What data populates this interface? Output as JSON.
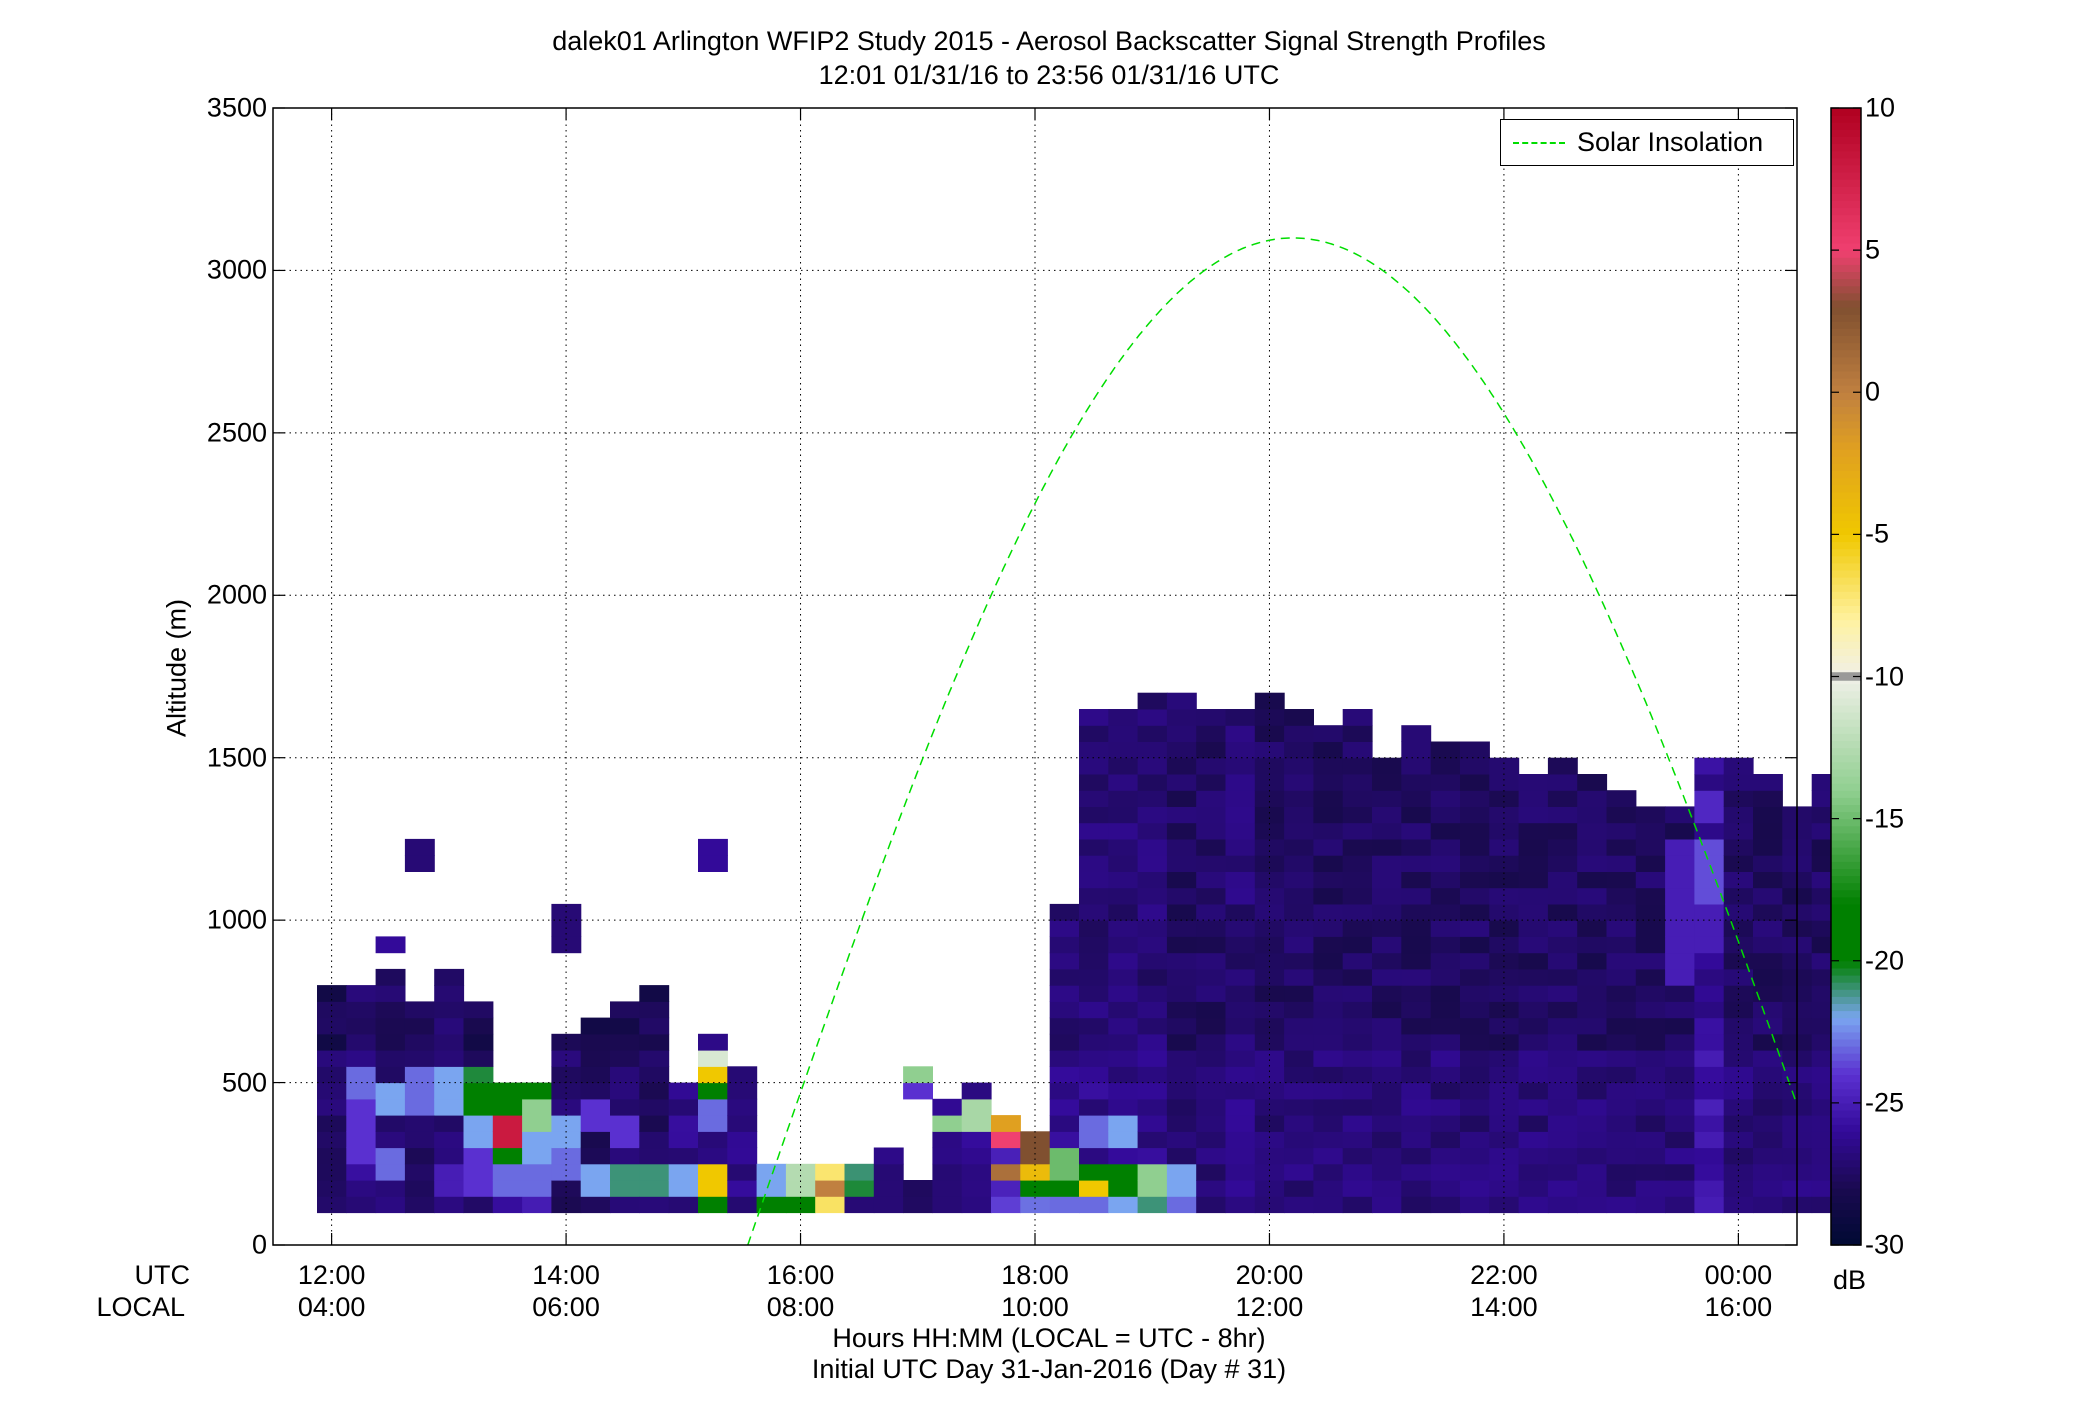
{
  "title": {
    "line1": "dalek01 Arlington WFIP2 Study 2015 - Aerosol Backscatter Signal Strength Profiles",
    "line2": "12:01 01/31/16 to 23:56 01/31/16  UTC"
  },
  "axis_labels": {
    "ylabel": "Altitude (m)",
    "xlabel_line1": "Hours HH:MM  (LOCAL = UTC - 8hr)",
    "xlabel_line2": "Initial UTC Day 31-Jan-2016 (Day # 31)",
    "row_utc": "UTC",
    "row_local": "LOCAL"
  },
  "legend": {
    "label": "Solar Insolation",
    "color": "#00dd00",
    "placement": "top-right"
  },
  "colorbar": {
    "unit": "dB",
    "ticks": [
      "10",
      "5",
      "0",
      "-5",
      "-10",
      "-15",
      "-20",
      "-25",
      "-30"
    ]
  },
  "chart_data": {
    "type": "heatmap",
    "grid": true,
    "x_range_hours": [
      11.5,
      24.5
    ],
    "y_range_m": [
      0,
      3500
    ],
    "xticks_utc": [
      "12:00",
      "14:00",
      "16:00",
      "18:00",
      "20:00",
      "22:00",
      "00:00"
    ],
    "xticks_local": [
      "04:00",
      "06:00",
      "08:00",
      "10:00",
      "12:00",
      "14:00",
      "16:00"
    ],
    "yticks": [
      "0",
      "500",
      "1000",
      "1500",
      "2000",
      "2500",
      "3000",
      "3500"
    ],
    "color_range_db": [
      -30,
      10
    ],
    "colormap": [
      {
        "db": -30,
        "color": "#000a33"
      },
      {
        "db": -28,
        "color": "#1a0a50"
      },
      {
        "db": -26,
        "color": "#330a99"
      },
      {
        "db": -24,
        "color": "#5a30d0"
      },
      {
        "db": -22,
        "color": "#7aa5f0"
      },
      {
        "db": -20,
        "color": "#008000"
      },
      {
        "db": -18,
        "color": "#008000"
      },
      {
        "db": -14,
        "color": "#90cf90"
      },
      {
        "db": -10,
        "color": "#f0f0e8"
      },
      {
        "db": -8,
        "color": "#fff2a0"
      },
      {
        "db": -5,
        "color": "#f0c800"
      },
      {
        "db": -2,
        "color": "#e0a020"
      },
      {
        "db": 0,
        "color": "#c08040"
      },
      {
        "db": 3,
        "color": "#805030"
      },
      {
        "db": 5,
        "color": "#f04070"
      },
      {
        "db": 10,
        "color": "#b00020"
      }
    ],
    "bin_width_hours": 0.25,
    "bin_height_m": 50,
    "columns": [
      {
        "t": 12.0,
        "top": 800,
        "low": -28
      },
      {
        "t": 12.25,
        "top": 800,
        "low": -27,
        "spots": [
          [
            450,
            550,
            -23
          ],
          [
            250,
            450,
            -24
          ]
        ]
      },
      {
        "t": 12.5,
        "top": 850,
        "low": -27.5,
        "extra": [
          [
            900,
            950,
            -26
          ]
        ],
        "spots": [
          [
            400,
            500,
            -22
          ],
          [
            200,
            300,
            -23
          ]
        ]
      },
      {
        "t": 12.75,
        "top": 750,
        "low": -28,
        "extra": [
          [
            1150,
            1250,
            -27
          ]
        ],
        "spots": [
          [
            400,
            550,
            -23
          ]
        ]
      },
      {
        "t": 13.0,
        "top": 850,
        "low": -27.5,
        "spots": [
          [
            400,
            550,
            -22
          ],
          [
            150,
            250,
            -25
          ]
        ]
      },
      {
        "t": 13.25,
        "top": 750,
        "low": -28,
        "spots": [
          [
            500,
            550,
            -20.5
          ],
          [
            400,
            500,
            -19
          ],
          [
            300,
            400,
            -22
          ],
          [
            150,
            300,
            -24
          ]
        ]
      },
      {
        "t": 13.5,
        "top": 500,
        "low": -26,
        "spots": [
          [
            400,
            500,
            -19
          ],
          [
            300,
            400,
            8
          ],
          [
            250,
            300,
            -19
          ],
          [
            150,
            250,
            -23
          ]
        ]
      },
      {
        "t": 13.75,
        "top": 500,
        "low": -26,
        "spots": [
          [
            450,
            500,
            -20
          ],
          [
            350,
            450,
            -14
          ],
          [
            250,
            350,
            -22
          ],
          [
            150,
            250,
            -23
          ]
        ]
      },
      {
        "t": 14.0,
        "top": 650,
        "low": -28,
        "extra": [
          [
            900,
            1050,
            -27
          ]
        ],
        "spots": [
          [
            300,
            400,
            -22
          ],
          [
            200,
            300,
            -23
          ]
        ]
      },
      {
        "t": 14.25,
        "top": 700,
        "low": -28,
        "spots": [
          [
            350,
            450,
            -24
          ],
          [
            150,
            250,
            -22
          ]
        ]
      },
      {
        "t": 14.5,
        "top": 750,
        "low": -28,
        "spots": [
          [
            300,
            400,
            -24
          ],
          [
            150,
            250,
            -21
          ]
        ]
      },
      {
        "t": 14.75,
        "top": 800,
        "low": -28,
        "spots": [
          [
            150,
            250,
            -21
          ]
        ]
      },
      {
        "t": 15.0,
        "top": 500,
        "low": -27,
        "spots": [
          [
            150,
            250,
            -22
          ]
        ]
      },
      {
        "t": 15.25,
        "top": 650,
        "low": -27,
        "extra": [
          [
            1150,
            1250,
            -26
          ]
        ],
        "spots": [
          [
            550,
            600,
            -11
          ],
          [
            500,
            550,
            -5
          ],
          [
            450,
            500,
            -19
          ],
          [
            350,
            450,
            -23
          ],
          [
            150,
            250,
            -5
          ],
          [
            100,
            150,
            -20
          ]
        ]
      },
      {
        "t": 15.5,
        "top": 550,
        "low": -27
      },
      {
        "t": 15.75,
        "top": 250,
        "low": -20,
        "spots": [
          [
            150,
            250,
            -22
          ]
        ]
      },
      {
        "t": 16.0,
        "top": 250,
        "low": -13,
        "spots": [
          [
            100,
            150,
            -19
          ]
        ]
      },
      {
        "t": 16.25,
        "top": 250,
        "low": -8,
        "spots": [
          [
            150,
            200,
            0
          ]
        ]
      },
      {
        "t": 16.5,
        "top": 250,
        "low": -21,
        "spots": [
          [
            100,
            150,
            -27
          ]
        ]
      },
      {
        "t": 16.75,
        "top": 300,
        "low": -27,
        "spots": [
          [
            100,
            200,
            -27
          ]
        ]
      },
      {
        "t": 17.0,
        "top": 200,
        "low": -28,
        "floating": [
          [
            450,
            500,
            -24
          ],
          [
            500,
            550,
            -14
          ]
        ]
      },
      {
        "t": 17.25,
        "top": 450,
        "low": -27,
        "spots": [
          [
            350,
            400,
            -14
          ],
          [
            100,
            200,
            -27
          ]
        ]
      },
      {
        "t": 17.5,
        "top": 500,
        "low": -27,
        "spots": [
          [
            400,
            450,
            -13
          ],
          [
            350,
            400,
            -13
          ]
        ]
      },
      {
        "t": 17.75,
        "top": 400,
        "low": -25,
        "spots": [
          [
            350,
            400,
            -2
          ],
          [
            300,
            350,
            5
          ],
          [
            200,
            250,
            1
          ]
        ]
      },
      {
        "t": 18.0,
        "top": 350,
        "low": -24,
        "spots": [
          [
            250,
            350,
            3
          ],
          [
            200,
            250,
            -4
          ],
          [
            150,
            200,
            -18
          ]
        ]
      },
      {
        "t": 18.25,
        "top": 1050,
        "low": -27,
        "spots": [
          [
            200,
            300,
            -15
          ],
          [
            150,
            200,
            -20
          ],
          [
            100,
            150,
            -23
          ]
        ]
      },
      {
        "t": 18.5,
        "top": 1650,
        "low": -27,
        "spots": [
          [
            300,
            400,
            -23
          ],
          [
            200,
            250,
            -18
          ],
          [
            150,
            200,
            -5
          ],
          [
            100,
            150,
            -23
          ]
        ]
      },
      {
        "t": 18.75,
        "top": 1650,
        "low": -27,
        "spots": [
          [
            300,
            400,
            -22
          ],
          [
            150,
            250,
            -20
          ],
          [
            100,
            150,
            -22
          ]
        ]
      },
      {
        "t": 19.0,
        "top": 1700,
        "low": -27,
        "spots": [
          [
            150,
            250,
            -14
          ],
          [
            100,
            150,
            -21
          ]
        ]
      },
      {
        "t": 19.25,
        "top": 1700,
        "low": -27.5,
        "spots": [
          [
            150,
            250,
            -22
          ],
          [
            100,
            150,
            -23
          ]
        ]
      },
      {
        "t": 19.5,
        "top": 1650,
        "low": -27.5
      },
      {
        "t": 19.75,
        "top": 1650,
        "low": -27
      },
      {
        "t": 20.0,
        "top": 1700,
        "low": -27.5
      },
      {
        "t": 20.25,
        "top": 1650,
        "low": -27.5
      },
      {
        "t": 20.5,
        "top": 1600,
        "low": -27.5
      },
      {
        "t": 20.75,
        "top": 1650,
        "low": -27.5
      },
      {
        "t": 21.0,
        "top": 1500,
        "low": -27.5
      },
      {
        "t": 21.25,
        "top": 1600,
        "low": -27.5
      },
      {
        "t": 21.5,
        "top": 1550,
        "low": -27.5
      },
      {
        "t": 21.75,
        "top": 1550,
        "low": -27.5
      },
      {
        "t": 22.0,
        "top": 1500,
        "low": -27.5
      },
      {
        "t": 22.25,
        "top": 1450,
        "low": -27.5
      },
      {
        "t": 22.5,
        "top": 1500,
        "low": -27.5
      },
      {
        "t": 22.75,
        "top": 1450,
        "low": -27.5
      },
      {
        "t": 23.0,
        "top": 1400,
        "low": -27.5
      },
      {
        "t": 23.25,
        "top": 1350,
        "low": -27.5
      },
      {
        "t": 23.5,
        "top": 1350,
        "low": -27.5,
        "spots": [
          [
            800,
            1250,
            -25
          ]
        ]
      },
      {
        "t": 23.75,
        "top": 1500,
        "low": -26,
        "spots": [
          [
            1300,
            1400,
            -24.5
          ],
          [
            1050,
            1250,
            -23.5
          ],
          [
            900,
            1050,
            -25
          ]
        ]
      },
      {
        "t": 24.0,
        "top": 1500,
        "low": -27.5
      },
      {
        "t": 24.25,
        "top": 1450,
        "low": -27.5
      },
      {
        "t": 24.5,
        "top": 1350,
        "low": -27.5
      },
      {
        "t": 24.75,
        "top": 1450,
        "low": -27.5
      }
    ],
    "solar_insolation": {
      "color": "#00dd00",
      "style": "dashed",
      "peak_time_hours": 20.2,
      "peak_altitude_m": 3100,
      "zero_crossings_hours": [
        15.55,
        24.92
      ]
    }
  }
}
